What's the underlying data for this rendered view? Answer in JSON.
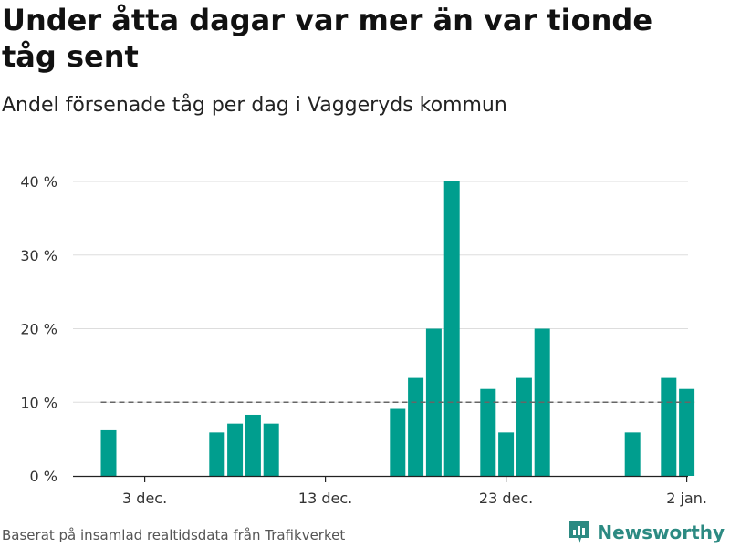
{
  "title": "Under åtta dagar var mer än var tionde tåg sent",
  "subtitle": "Andel försenade tåg per dag i Vaggeryds kommun",
  "source": "Baserat på insamlad realtidsdata från Trafikverket",
  "brand": {
    "name": "Newsworthy",
    "icon": "newsworthy-logo-icon"
  },
  "colors": {
    "bar": "#009e8e",
    "reference_line": "#666666",
    "grid": "#dddddd",
    "brand": "#2c8a82"
  },
  "chart_data": {
    "type": "bar",
    "x_unit": "day",
    "x": [
      "2023-12-01",
      "2023-12-02",
      "2023-12-03",
      "2023-12-04",
      "2023-12-05",
      "2023-12-06",
      "2023-12-07",
      "2023-12-08",
      "2023-12-09",
      "2023-12-10",
      "2023-12-11",
      "2023-12-12",
      "2023-12-13",
      "2023-12-14",
      "2023-12-15",
      "2023-12-16",
      "2023-12-17",
      "2023-12-18",
      "2023-12-19",
      "2023-12-20",
      "2023-12-21",
      "2023-12-22",
      "2023-12-23",
      "2023-12-24",
      "2023-12-25",
      "2023-12-26",
      "2023-12-27",
      "2023-12-28",
      "2023-12-29",
      "2023-12-30",
      "2023-12-31",
      "2024-01-01",
      "2024-01-02"
    ],
    "values": [
      6.2,
      null,
      null,
      null,
      null,
      null,
      5.9,
      7.1,
      8.3,
      7.1,
      null,
      null,
      null,
      null,
      null,
      null,
      9.1,
      13.3,
      20.0,
      40.0,
      null,
      11.8,
      5.9,
      13.3,
      20.0,
      null,
      null,
      null,
      null,
      5.9,
      null,
      13.3,
      11.8
    ],
    "reference_line": {
      "value": 10,
      "style": "dashed"
    },
    "y_ticks": [
      0,
      10,
      20,
      30,
      40
    ],
    "y_tick_labels": [
      "0 %",
      "10 %",
      "20 %",
      "30 %",
      "40 %"
    ],
    "x_tick_labels": [
      {
        "date": "2023-12-03",
        "label": "3 dec."
      },
      {
        "date": "2023-12-13",
        "label": "13 dec."
      },
      {
        "date": "2023-12-23",
        "label": "23 dec."
      },
      {
        "date": "2024-01-02",
        "label": "2 jan."
      }
    ],
    "ylim": [
      0,
      40
    ],
    "grid": true,
    "xlabel": "",
    "ylabel": ""
  }
}
